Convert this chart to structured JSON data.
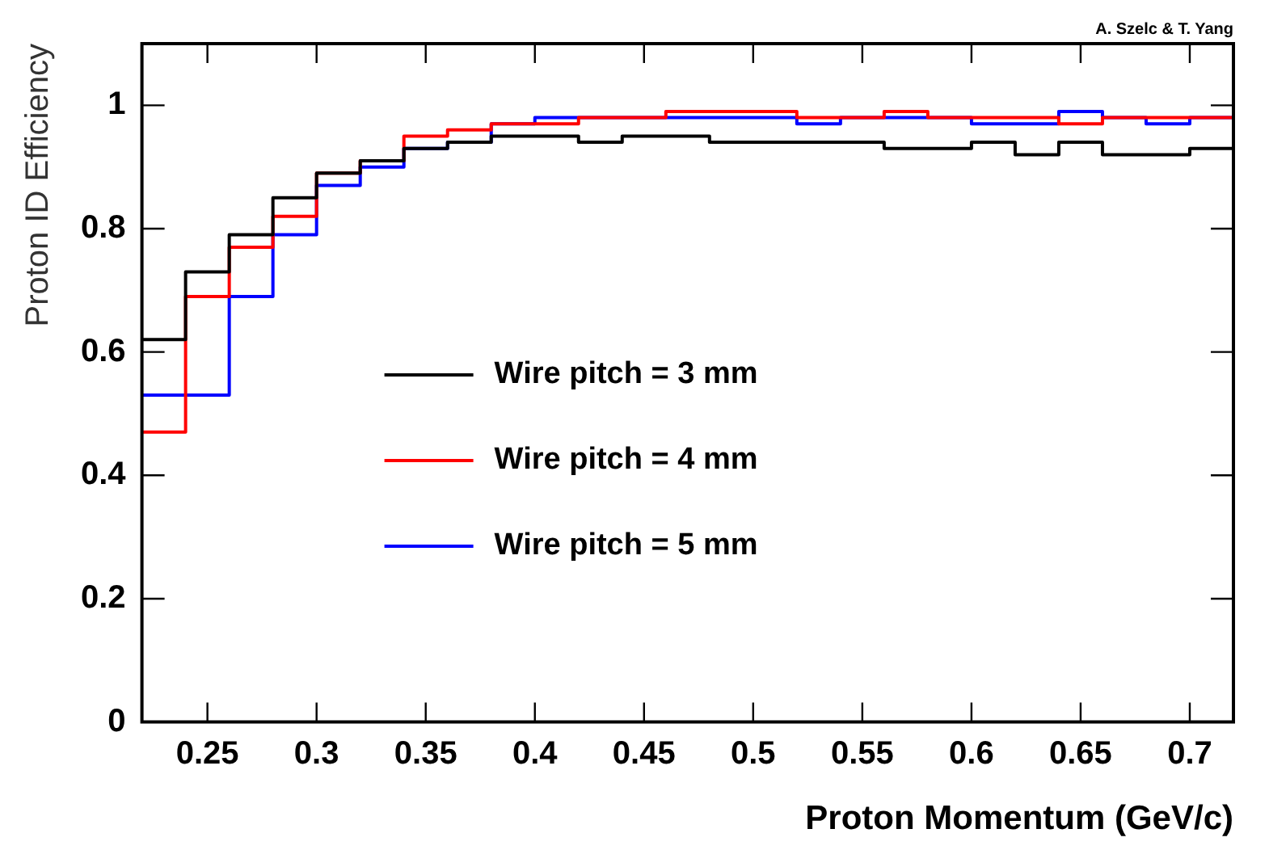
{
  "chart_data": {
    "type": "histogram",
    "xlabel": "Proton Momentum (GeV/c)",
    "ylabel": "Proton ID Efficiency",
    "annotations": [
      "A. Szelc & T. Yang"
    ],
    "bins": [
      0.22,
      0.24,
      0.26,
      0.28,
      0.3,
      0.32,
      0.34,
      0.36,
      0.38,
      0.4,
      0.42,
      0.44,
      0.46,
      0.48,
      0.5,
      0.52,
      0.54,
      0.56,
      0.58,
      0.6,
      0.62,
      0.64,
      0.66,
      0.68,
      0.7,
      0.72
    ],
    "series": [
      {
        "name": "Wire pitch = 3 mm",
        "color": "#000000",
        "values": [
          0.62,
          0.73,
          0.79,
          0.85,
          0.89,
          0.91,
          0.93,
          0.94,
          0.95,
          0.95,
          0.94,
          0.95,
          0.95,
          0.94,
          0.94,
          0.94,
          0.94,
          0.93,
          0.93,
          0.94,
          0.92,
          0.94,
          0.92,
          0.92,
          0.93
        ]
      },
      {
        "name": "Wire pitch = 4 mm",
        "color": "#ff0000",
        "values": [
          0.47,
          0.69,
          0.77,
          0.82,
          0.89,
          0.91,
          0.95,
          0.96,
          0.97,
          0.97,
          0.98,
          0.98,
          0.99,
          0.99,
          0.99,
          0.98,
          0.98,
          0.99,
          0.98,
          0.98,
          0.98,
          0.97,
          0.98,
          0.98,
          0.98
        ]
      },
      {
        "name": "Wire pitch = 5 mm",
        "color": "#0000ff",
        "values": [
          0.53,
          0.53,
          0.69,
          0.79,
          0.87,
          0.9,
          0.93,
          0.94,
          0.97,
          0.98,
          0.98,
          0.98,
          0.98,
          0.98,
          0.98,
          0.97,
          0.98,
          0.98,
          0.98,
          0.97,
          0.97,
          0.99,
          0.98,
          0.97,
          0.98
        ]
      }
    ],
    "xlim": [
      0.22,
      0.72
    ],
    "xticks": [
      {
        "value": 0.25,
        "label": "0.25"
      },
      {
        "value": 0.3,
        "label": "0.3"
      },
      {
        "value": 0.35,
        "label": "0.35"
      },
      {
        "value": 0.4,
        "label": "0.4"
      },
      {
        "value": 0.45,
        "label": "0.45"
      },
      {
        "value": 0.5,
        "label": "0.5"
      },
      {
        "value": 0.55,
        "label": "0.55"
      },
      {
        "value": 0.6,
        "label": "0.6"
      },
      {
        "value": 0.65,
        "label": "0.65"
      },
      {
        "value": 0.7,
        "label": "0.7"
      }
    ],
    "ylim": [
      0,
      1.1
    ],
    "yticks": [
      0,
      {
        "value": 0.2,
        "label": "0.2"
      },
      {
        "value": 0.4,
        "label": "0.4"
      },
      {
        "value": 0.6,
        "label": "0.6"
      },
      {
        "value": 0.8,
        "label": "0.8"
      },
      1
    ],
    "grid": false,
    "legend": "center",
    "line_style": "solid"
  }
}
